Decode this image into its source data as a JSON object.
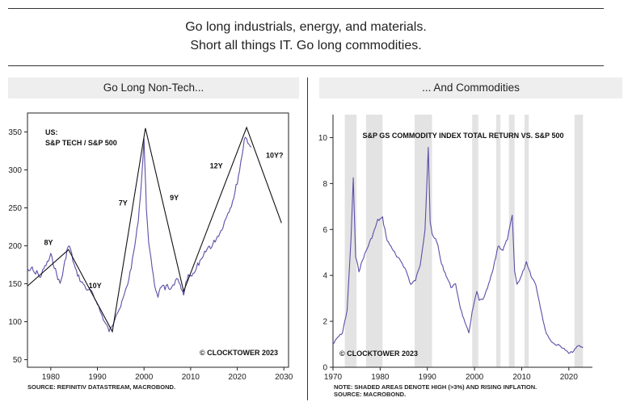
{
  "headline": {
    "line1": "Go long industrials, energy, and materials.",
    "line2": "Short all things IT. Go long commodities."
  },
  "left_panel": {
    "header": "Go Long Non-Tech...",
    "source": "SOURCE: REFINITIV DATASTREAM, MACROBOND."
  },
  "right_panel": {
    "header": "... And Commodities",
    "note_line1": "NOTE: SHADED AREAS DENOTE HIGH (>3%) AND RISING INFLATION.",
    "note_line2": "SOURCE: MACROBOND."
  },
  "colors": {
    "series": "#5b4fa6",
    "label_red": "#e01b1b",
    "shade": "#e3e3e3",
    "panel_header_bg": "#eeeeee"
  },
  "chart_data": [
    {
      "type": "line",
      "title": "US:",
      "subtitle": "S&P TECH / S&P 500",
      "credit": "© CLOCKTOWER 2023",
      "xlim": [
        1975,
        2031
      ],
      "ylim": [
        40,
        375
      ],
      "x_ticks": [
        1980,
        1990,
        2000,
        2010,
        2020,
        2030
      ],
      "y_ticks": [
        50,
        100,
        150,
        200,
        250,
        300,
        350
      ],
      "series": [
        {
          "x": [
            1975.0,
            1975.5,
            1976.0,
            1976.5,
            1977.0,
            1977.5,
            1978.0,
            1978.5,
            1979.0,
            1979.5,
            1980.0,
            1980.5,
            1981.0,
            1981.5,
            1982.0,
            1982.5,
            1983.0,
            1983.5,
            1984.0,
            1984.5,
            1985.0,
            1985.5,
            1986.0,
            1986.5,
            1987.0,
            1987.5,
            1988.0,
            1988.5,
            1989.0,
            1989.5,
            1990.0,
            1990.5,
            1991.0,
            1991.5,
            1992.0,
            1992.5,
            1993.0,
            1993.5,
            1994.0,
            1994.5,
            1995.0,
            1995.5,
            1996.0,
            1996.5,
            1997.0,
            1997.5,
            1998.0,
            1998.5,
            1999.0,
            1999.5,
            2000.0,
            2000.25,
            2000.5,
            2001.0,
            2001.5,
            2002.0,
            2002.5,
            2003.0,
            2003.5,
            2004.0,
            2004.5,
            2005.0,
            2005.5,
            2006.0,
            2006.5,
            2007.0,
            2007.5,
            2008.0,
            2008.5,
            2009.0,
            2009.5,
            2010.0,
            2010.5,
            2011.0,
            2011.5,
            2012.0,
            2012.5,
            2013.0,
            2013.5,
            2014.0,
            2014.5,
            2015.0,
            2015.5,
            2016.0,
            2016.5,
            2017.0,
            2017.5,
            2018.0,
            2018.5,
            2019.0,
            2019.5,
            2020.0,
            2020.5,
            2021.0,
            2021.5,
            2022.0,
            2022.5,
            2023.0
          ],
          "values": [
            170,
            165,
            172,
            162,
            168,
            158,
            162,
            170,
            175,
            180,
            188,
            178,
            168,
            158,
            150,
            162,
            178,
            195,
            200,
            188,
            175,
            165,
            160,
            152,
            150,
            145,
            140,
            142,
            135,
            130,
            125,
            115,
            108,
            100,
            95,
            88,
            92,
            100,
            110,
            115,
            120,
            130,
            140,
            150,
            165,
            180,
            200,
            220,
            250,
            290,
            338,
            300,
            245,
            205,
            185,
            160,
            140,
            130,
            145,
            150,
            142,
            148,
            140,
            145,
            150,
            155,
            152,
            142,
            135,
            150,
            162,
            160,
            165,
            165,
            175,
            178,
            182,
            190,
            195,
            200,
            198,
            205,
            210,
            215,
            220,
            228,
            235,
            245,
            250,
            260,
            270,
            285,
            300,
            320,
            340,
            345,
            330,
            330
          ]
        }
      ],
      "cycle_lines": [
        {
          "points": [
            [
              1975,
              147
            ],
            [
              1983.8,
              195
            ],
            [
              1993.2,
              87
            ],
            [
              2000.3,
              355
            ],
            [
              2008.5,
              140
            ],
            [
              2022.0,
              356
            ],
            [
              2029.5,
              230
            ]
          ]
        }
      ],
      "annotations": [
        {
          "text": "8Y",
          "x": 1979.5,
          "y": 201
        },
        {
          "text": "10Y",
          "x": 1989.5,
          "y": 144
        },
        {
          "text": "7Y",
          "x": 1995.5,
          "y": 253
        },
        {
          "text": "9Y",
          "x": 2006.5,
          "y": 260
        },
        {
          "text": "12Y",
          "x": 2015.5,
          "y": 302
        },
        {
          "text": "10Y?",
          "x": 2028.0,
          "y": 316
        }
      ]
    },
    {
      "type": "line",
      "title": "S&P GS COMMODITY INDEX TOTAL RETURN VS. S&P 500",
      "credit": "© CLOCKTOWER 2023",
      "xlim": [
        1970,
        2025
      ],
      "ylim": [
        0,
        11
      ],
      "x_ticks": [
        1970,
        1980,
        1990,
        2000,
        2010,
        2020
      ],
      "y_ticks": [
        0,
        2,
        4,
        6,
        8,
        10
      ],
      "shaded_ranges": [
        [
          1972.5,
          1975.0
        ],
        [
          1977.0,
          1980.5
        ],
        [
          1987.3,
          1991.0
        ],
        [
          1999.5,
          2000.8
        ],
        [
          2004.6,
          2005.5
        ],
        [
          2007.3,
          2008.5
        ],
        [
          2010.6,
          2011.5
        ],
        [
          2021.2,
          2023.0
        ]
      ],
      "series": [
        {
          "x": [
            1970.0,
            1971.0,
            1972.0,
            1973.0,
            1973.8,
            1974.3,
            1974.8,
            1975.5,
            1976.5,
            1977.5,
            1978.5,
            1979.5,
            1980.5,
            1981.5,
            1982.5,
            1983.5,
            1984.5,
            1985.5,
            1986.5,
            1987.5,
            1988.5,
            1989.5,
            1990.2,
            1990.6,
            1991.0,
            1992.0,
            1993.0,
            1994.0,
            1995.0,
            1996.0,
            1997.0,
            1998.0,
            1998.8,
            1999.5,
            2000.5,
            2001.0,
            2002.0,
            2003.0,
            2004.0,
            2005.0,
            2006.0,
            2007.0,
            2008.0,
            2008.5,
            2009.0,
            2010.0,
            2011.0,
            2012.0,
            2013.0,
            2014.0,
            2015.0,
            2016.0,
            2017.0,
            2018.0,
            2019.0,
            2020.0,
            2021.0,
            2022.0,
            2023.0
          ],
          "values": [
            1.0,
            1.3,
            1.5,
            2.5,
            5.5,
            8.2,
            4.8,
            4.2,
            4.8,
            5.3,
            5.8,
            6.4,
            6.5,
            5.5,
            5.2,
            4.8,
            4.6,
            4.2,
            3.6,
            3.8,
            4.5,
            6.0,
            9.5,
            6.3,
            5.8,
            5.5,
            4.5,
            4.0,
            3.5,
            3.6,
            2.6,
            1.9,
            1.5,
            2.4,
            3.3,
            2.9,
            3.0,
            3.6,
            4.3,
            5.3,
            5.1,
            5.6,
            6.6,
            4.2,
            3.6,
            4.0,
            4.6,
            4.0,
            3.6,
            2.6,
            1.6,
            1.2,
            1.0,
            0.95,
            0.8,
            0.6,
            0.7,
            0.95,
            0.85
          ]
        }
      ]
    }
  ]
}
